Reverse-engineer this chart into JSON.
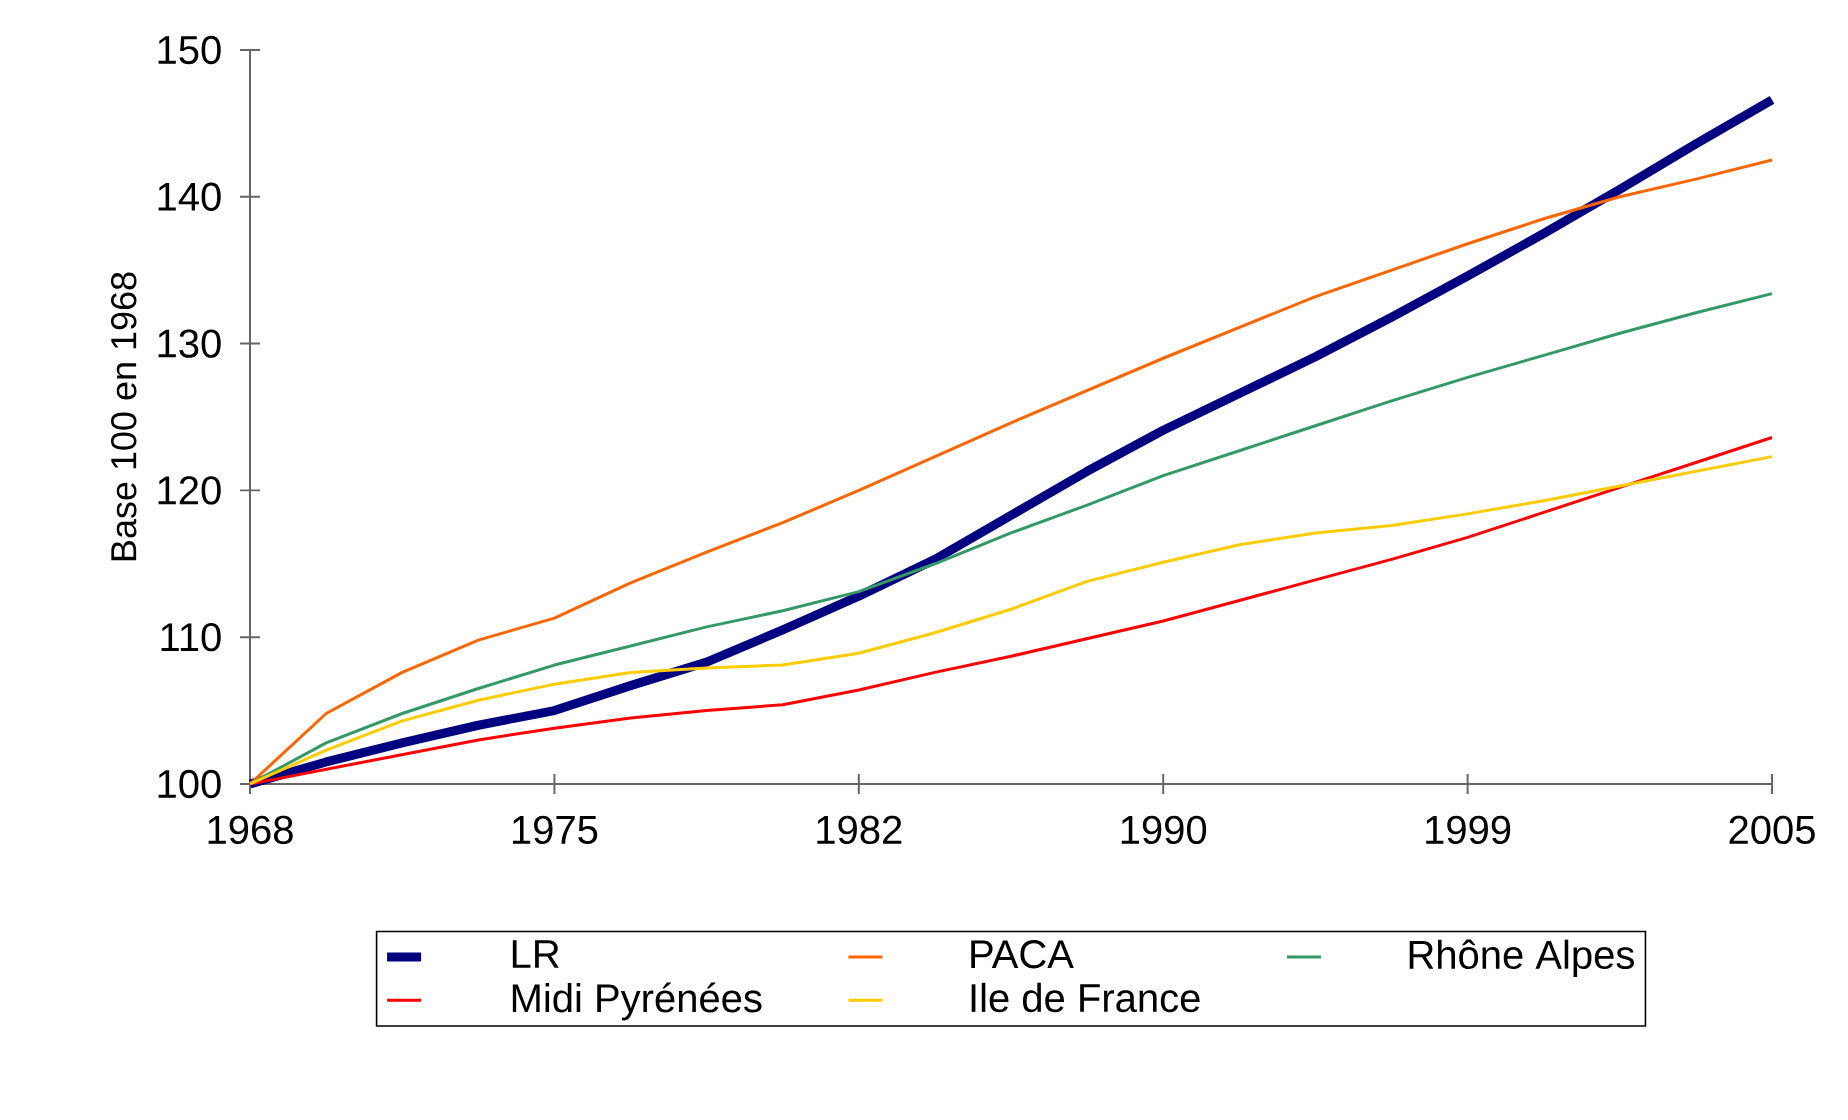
{
  "chart_data": {
    "type": "line",
    "ylabel": "Base 100 en 1968",
    "categories": [
      "1968",
      null,
      null,
      null,
      "1975",
      null,
      null,
      null,
      "1982",
      null,
      null,
      null,
      "1990",
      null,
      null,
      null,
      "1999",
      null,
      null,
      null,
      "2005"
    ],
    "ylim": [
      100,
      150
    ],
    "yticks": [
      100,
      110,
      120,
      130,
      140,
      150
    ],
    "legend": "bottom",
    "grid": false,
    "series": [
      {
        "name": "LR",
        "color": "#000080",
        "values": [
          100,
          101.5,
          102.8,
          104,
          105,
          106.7,
          108.3,
          110.5,
          112.8,
          115.3,
          118.3,
          121.3,
          124.1,
          126.6,
          129.1,
          131.8,
          134.6,
          137.5,
          140.5,
          143.6,
          146.6
        ]
      },
      {
        "name": "PACA",
        "color": "#ff6600",
        "values": [
          100,
          104.8,
          107.6,
          109.8,
          111.3,
          113.7,
          115.8,
          117.8,
          120,
          122.3,
          124.6,
          126.8,
          129,
          131.1,
          133.2,
          135,
          136.8,
          138.5,
          140,
          141.2,
          142.5
        ]
      },
      {
        "name": "Rhône Alpes",
        "color": "#339966",
        "values": [
          100,
          102.8,
          104.8,
          106.5,
          108.1,
          109.4,
          110.7,
          111.8,
          113.1,
          115,
          117.1,
          119,
          121,
          122.7,
          124.4,
          126.1,
          127.7,
          129.2,
          130.7,
          132.1,
          133.4
        ]
      },
      {
        "name": "Midi Pyrénées",
        "color": "#ff0000",
        "values": [
          100,
          101,
          102,
          103,
          103.8,
          104.5,
          105,
          105.4,
          106.4,
          107.6,
          108.7,
          109.9,
          111.1,
          112.5,
          113.9,
          115.3,
          116.8,
          118.5,
          120.2,
          121.9,
          123.6
        ]
      },
      {
        "name": "Ile de France",
        "color": "#ffcc00",
        "values": [
          100,
          102.3,
          104.3,
          105.7,
          106.8,
          107.6,
          107.9,
          108.1,
          108.9,
          110.3,
          111.9,
          113.8,
          115.1,
          116.3,
          117.1,
          117.6,
          118.4,
          119.3,
          120.3,
          121.3,
          122.3
        ]
      }
    ]
  }
}
